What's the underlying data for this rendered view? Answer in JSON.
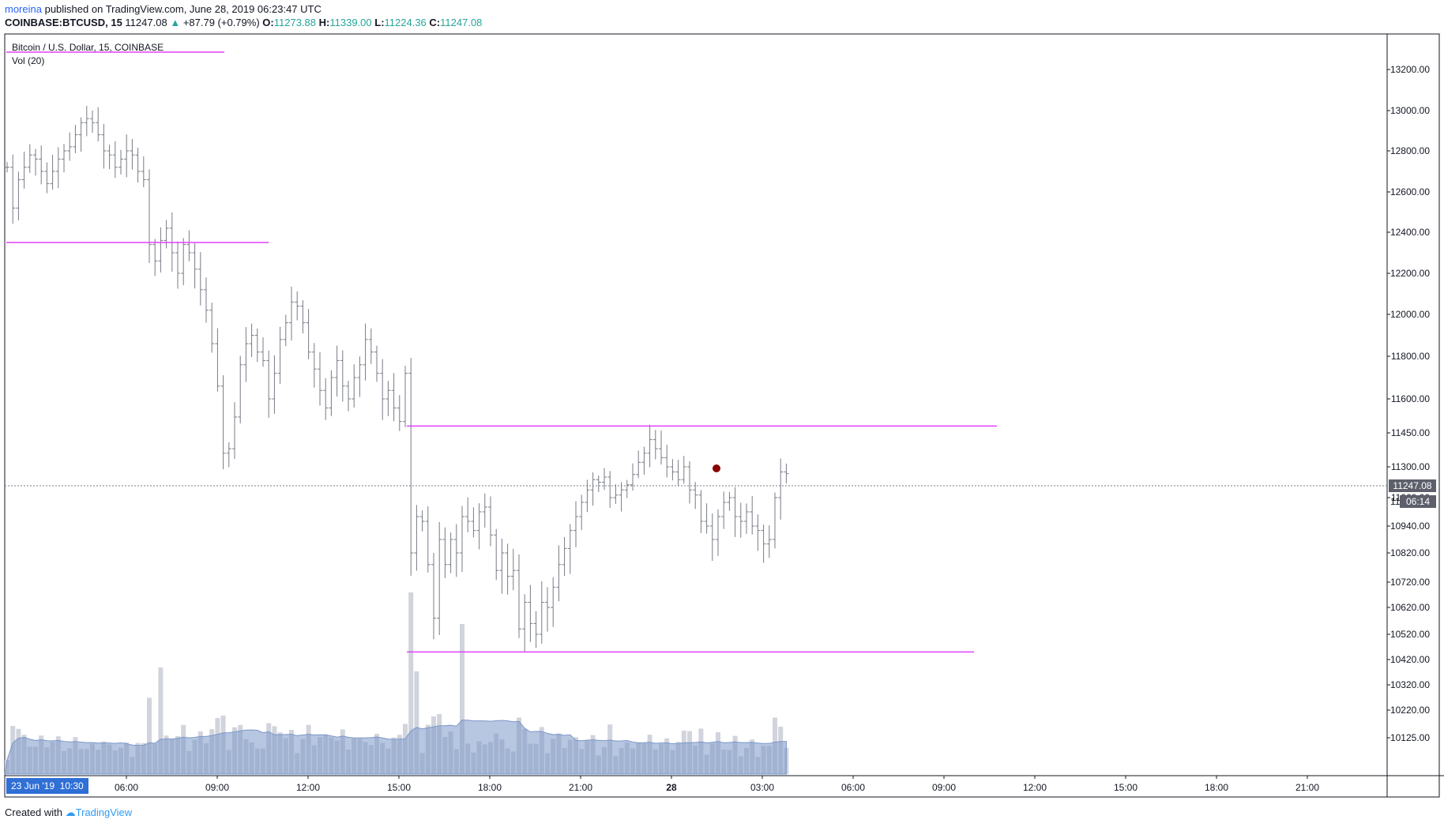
{
  "header": {
    "user": "moreina",
    "published_text": "published on TradingView.com, June 28, 2019 06:23:47 UTC",
    "symbol": "COINBASE:BTCUSD, 15",
    "last": "11247.08",
    "up_arrow": "▲",
    "change": "+87.79 (+0.79%)",
    "o_label": "O:",
    "o_val": "11273.88",
    "h_label": "H:",
    "h_val": "11339.00",
    "l_label": "L:",
    "l_val": "11224.36",
    "c_label": "C:",
    "c_val": "11247.08"
  },
  "legend": {
    "title": "Bitcoin / U.S. Dollar, 15, COINBASE",
    "volume": "Vol (20)"
  },
  "footer": {
    "created_with": "Created with",
    "brand": "TradingView"
  },
  "colors": {
    "bar": "#787b86",
    "hline": "#e040fb",
    "volume": "#d1d4dc",
    "volume_ma": "#7b97c9",
    "marker": "#8b0000",
    "time_badge": "#2f6fd6",
    "last_label": "#5d606b"
  },
  "chart_data": {
    "type": "ohlc",
    "title": "Bitcoin / U.S. Dollar, 15, COINBASE",
    "interval": "15",
    "y_ticks": [
      "13200.00",
      "13000.00",
      "12800.00",
      "12600.00",
      "12400.00",
      "12200.00",
      "12000.00",
      "11800.00",
      "11600.00",
      "11450.00",
      "11300.00",
      "11060.00",
      "10940.00",
      "10820.00",
      "10720.00",
      "10620.00",
      "10520.00",
      "10420.00",
      "10320.00",
      "10220.00",
      "10125.00"
    ],
    "x_ticks": [
      "06:00",
      "09:00",
      "12:00",
      "15:00",
      "18:00",
      "21:00",
      "28",
      "03:00",
      "06:00",
      "09:00",
      "12:00",
      "15:00",
      "18:00",
      "21:00"
    ],
    "x_axis_badge": "23 Jun '19  10:30",
    "last_price_label": "11247.08",
    "countdown_label": "06:14",
    "countdown_prefix": "11",
    "horizontal_lines": [
      12350,
      11480,
      10450
    ],
    "scale": "log",
    "close_series": [
      12720,
      12520,
      12660,
      12720,
      12780,
      12760,
      12700,
      12640,
      12700,
      12760,
      12800,
      12820,
      12880,
      12940,
      12960,
      12940,
      12880,
      12800,
      12780,
      12720,
      12760,
      12800,
      12780,
      12700,
      12660,
      12340,
      12260,
      12360,
      12420,
      12300,
      12200,
      12340,
      12300,
      12220,
      12120,
      12020,
      11860,
      11660,
      11360,
      11380,
      11520,
      11760,
      11860,
      11900,
      11820,
      11780,
      11600,
      11720,
      11880,
      11960,
      12060,
      12040,
      11960,
      11820,
      11740,
      11640,
      11560,
      11700,
      11780,
      11660,
      11600,
      11700,
      11760,
      11880,
      11820,
      11720,
      11600,
      11640,
      11560,
      11500,
      11720,
      10820,
      10980,
      10960,
      10780,
      10580,
      10880,
      10780,
      10880,
      10820,
      10980,
      10960,
      10920,
      11000,
      11020,
      10900,
      10760,
      10820,
      10740,
      10760,
      10540,
      10640,
      10560,
      10520,
      10640,
      10620,
      10700,
      10780,
      10840,
      10920,
      10980,
      11040,
      11120,
      11200,
      11180,
      11220,
      11060,
      11080,
      11120,
      11160,
      11240,
      11320,
      11360,
      11420,
      11380,
      11340,
      11300,
      11260,
      11200,
      11300,
      11120,
      11080,
      10960,
      10940,
      10880,
      10980,
      11040,
      11060,
      10980,
      10960,
      11000,
      10940,
      10920,
      10860,
      10880,
      11060,
      11260,
      11247
    ],
    "volume_ma_desc": "smoothed average of volume bars"
  }
}
